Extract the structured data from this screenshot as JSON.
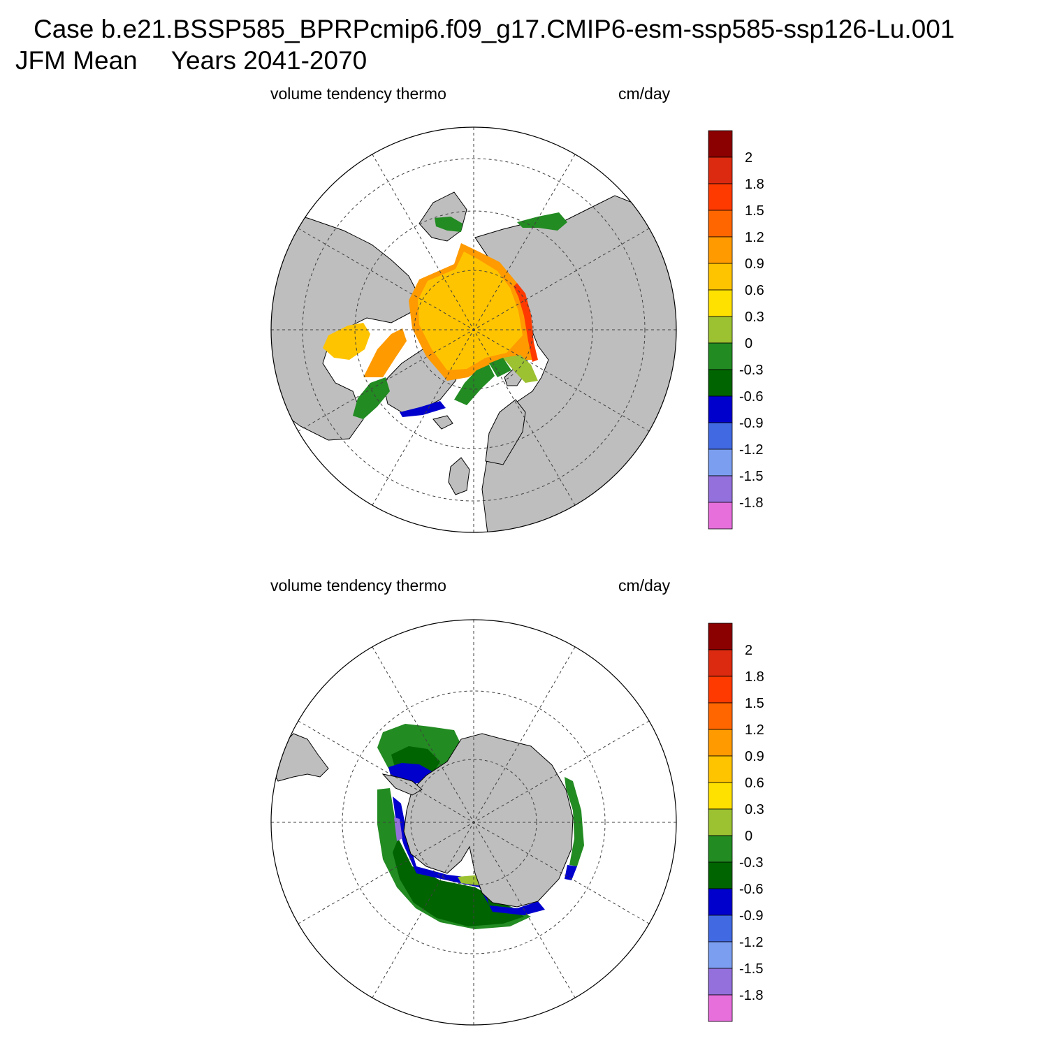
{
  "header": {
    "case_line": "Case b.e21.BSSP585_BPRPcmip6.f09_g17.CMIP6-esm-ssp585-ssp126-Lu.001",
    "season": "JFM Mean",
    "years": "Years 2041-2070"
  },
  "panels": [
    {
      "id": "north",
      "variable": "volume tendency thermo",
      "units": "cm/day"
    },
    {
      "id": "south",
      "variable": "volume tendency thermo",
      "units": "cm/day"
    }
  ],
  "colorbar": {
    "labels": [
      "2",
      "1.8",
      "1.5",
      "1.2",
      "0.9",
      "0.6",
      "0.3",
      "0",
      "-0.3",
      "-0.6",
      "-0.9",
      "-1.2",
      "-1.5",
      "-1.8"
    ],
    "colors": [
      "#8b0000",
      "#db2a10",
      "#ff3a00",
      "#ff6600",
      "#ff9a00",
      "#ffc400",
      "#ffe100",
      "#9cc131",
      "#228b22",
      "#006400",
      "#0000cd",
      "#4169e1",
      "#7b9ef0",
      "#9370db",
      "#e66fdc"
    ]
  },
  "map_colors": {
    "land": "#bebebe",
    "ocean": "#ffffff"
  }
}
